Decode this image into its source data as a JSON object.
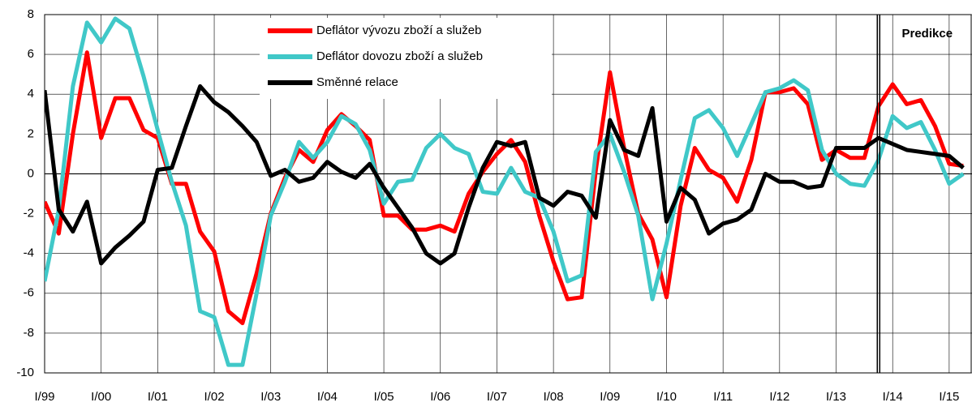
{
  "chart_data": {
    "type": "line",
    "categories": [
      "I/99",
      null,
      null,
      null,
      "I/00",
      null,
      null,
      null,
      "I/01",
      null,
      null,
      null,
      "I/02",
      null,
      null,
      null,
      "I/03",
      null,
      null,
      null,
      "I/04",
      null,
      null,
      null,
      "I/05",
      null,
      null,
      null,
      "I/06",
      null,
      null,
      null,
      "I/07",
      null,
      null,
      null,
      "I/08",
      null,
      null,
      null,
      "I/09",
      null,
      null,
      null,
      "I/10",
      null,
      null,
      null,
      "I/11",
      null,
      null,
      null,
      "I/12",
      null,
      null,
      null,
      "I/13",
      null,
      null,
      null,
      "I/14",
      null,
      null,
      null,
      "I/15",
      null
    ],
    "series": [
      {
        "name": "Deflátor vývozu zboží a služeb",
        "color": "#ff0000",
        "values": [
          -1.4,
          -3.0,
          2,
          6.1,
          1.8,
          3.8,
          3.8,
          2.2,
          1.8,
          -0.5,
          -0.5,
          -2.9,
          -3.9,
          -6.9,
          -7.5,
          -5,
          -2,
          -0.2,
          1.2,
          0.6,
          2.2,
          3.0,
          2.4,
          1.7,
          -2.1,
          -2.1,
          -2.8,
          -2.8,
          -2.6,
          -2.9,
          -1,
          0.1,
          1.0,
          1.7,
          0.6,
          -2.1,
          -4.4,
          -6.3,
          -6.2,
          0.2,
          5.1,
          1.3,
          -2,
          -3.3,
          -6.2,
          -1.6,
          1.3,
          0.2,
          -0.2,
          -1.4,
          0.7,
          4.1,
          4.1,
          4.3,
          3.5,
          0.7,
          1.2,
          0.8,
          0.8,
          3.4,
          4.5,
          3.5,
          3.7,
          2.4,
          0.5,
          0.4
        ]
      },
      {
        "name": "Deflátor dovozu zboží a služeb",
        "color": "#40c8c8",
        "values": [
          -5.4,
          -1.8,
          4.4,
          7.6,
          6.6,
          7.8,
          7.3,
          4.9,
          2.2,
          -0.4,
          -2.6,
          -6.9,
          -7.2,
          -9.6,
          -9.6,
          -6,
          -2.1,
          -0.4,
          1.6,
          0.8,
          1.6,
          2.9,
          2.5,
          1.2,
          -1.5,
          -0.4,
          -0.3,
          1.3,
          2.0,
          1.3,
          1.0,
          -0.9,
          -1.0,
          0.3,
          -0.9,
          -1.2,
          -2.9,
          -5.4,
          -5.1,
          1.1,
          2.0,
          0.1,
          -2.1,
          -6.3,
          -3.5,
          -0.3,
          2.8,
          3.2,
          2.3,
          0.9,
          2.5,
          4.1,
          4.3,
          4.7,
          4.2,
          1.2,
          0.0,
          -0.5,
          -0.6,
          0.7,
          2.9,
          2.3,
          2.6,
          1.2,
          -0.5,
          0.0
        ]
      },
      {
        "name": "Směnné relace",
        "color": "#000000",
        "values": [
          4.2,
          -1.8,
          -2.9,
          -1.4,
          -4.5,
          -3.7,
          -3.1,
          -2.4,
          0.2,
          0.3,
          2.4,
          4.4,
          3.6,
          3.1,
          2.4,
          1.6,
          -0.1,
          0.2,
          -0.4,
          -0.2,
          0.6,
          0.1,
          -0.2,
          0.5,
          -0.7,
          -1.7,
          -2.7,
          -4,
          -4.5,
          -4,
          -1.7,
          0.3,
          1.6,
          1.4,
          1.6,
          -1.2,
          -1.6,
          -0.9,
          -1.1,
          -2.2,
          2.7,
          1.2,
          0.9,
          3.3,
          -2.4,
          -0.7,
          -1.3,
          -3.0,
          -2.5,
          -2.3,
          -1.8,
          0.0,
          -0.4,
          -0.4,
          -0.7,
          -0.6,
          1.3,
          1.3,
          1.3,
          1.8,
          1.5,
          1.2,
          1.1,
          1.0,
          0.9,
          0.3
        ]
      }
    ],
    "ylim": [
      -10,
      8
    ],
    "yticks": [
      -10,
      -8,
      -6,
      -4,
      -2,
      0,
      2,
      4,
      6,
      8
    ],
    "grid": true,
    "annotation": {
      "text": "Predikce",
      "x": 59
    }
  }
}
